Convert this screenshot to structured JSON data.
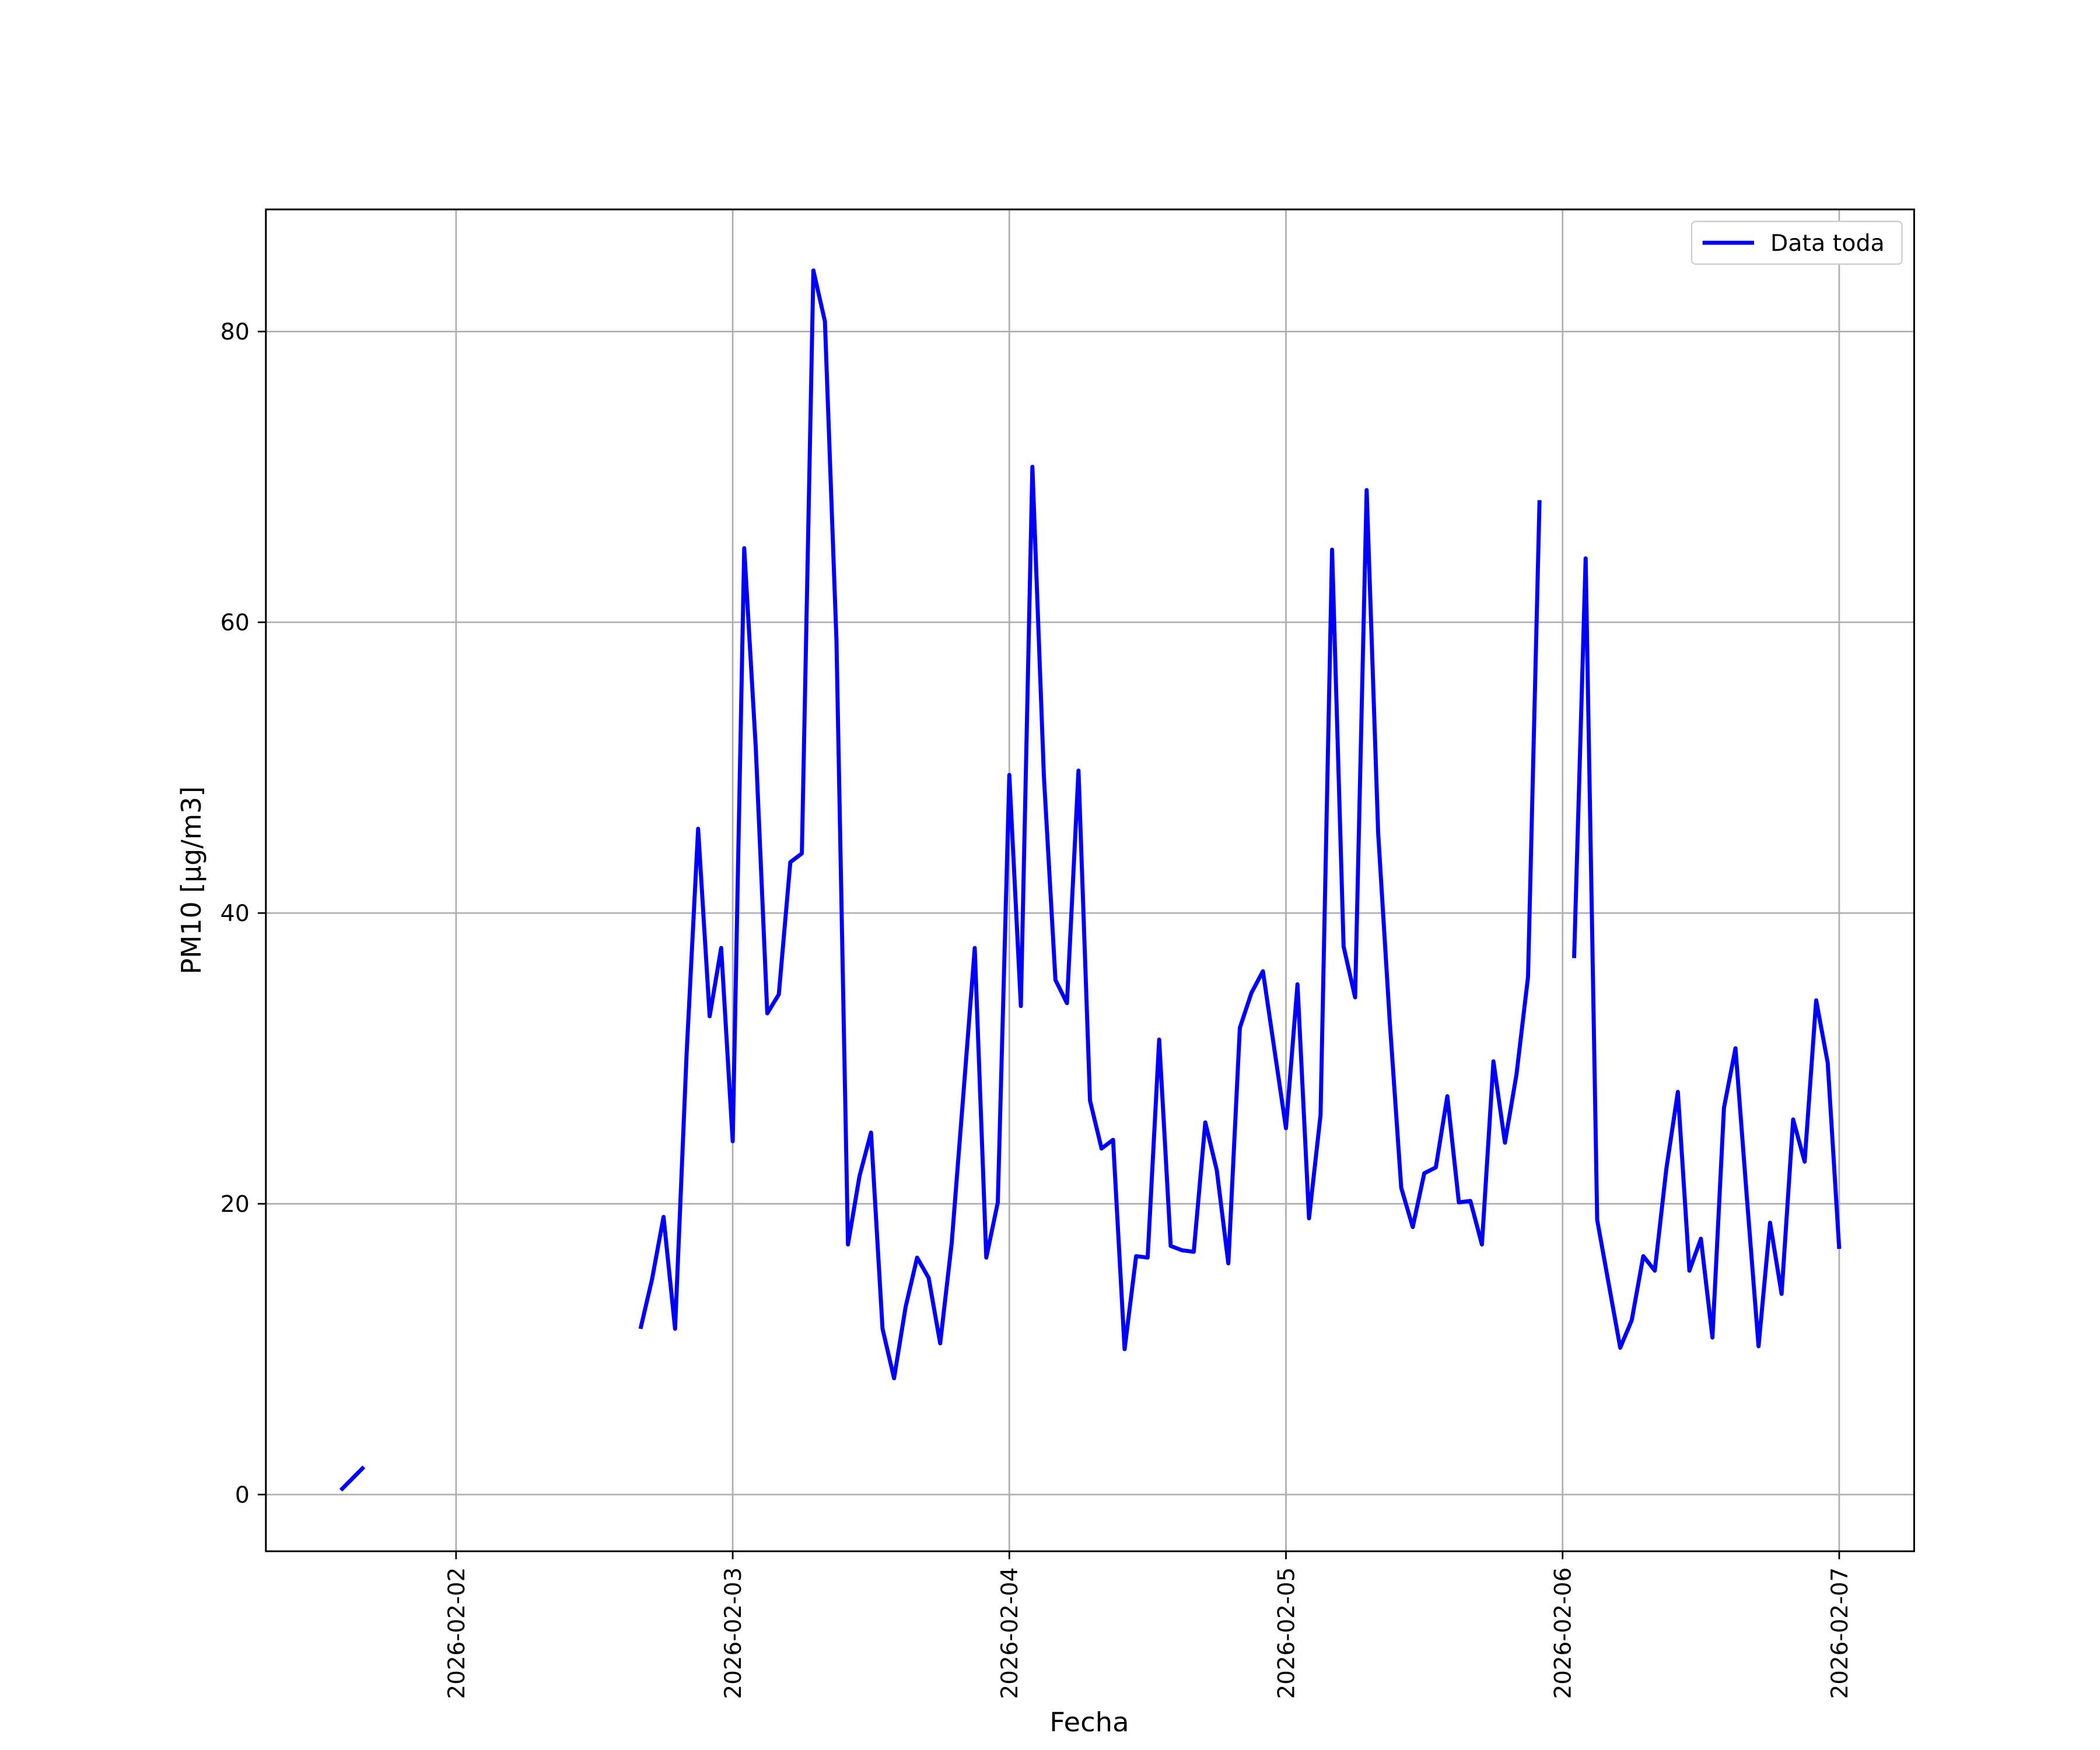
{
  "chart_data": {
    "type": "line",
    "xlabel": "Fecha",
    "ylabel": "PM10 [μg/m3]",
    "x": [
      "2026-02-01 14:00",
      "2026-02-01 15:00",
      "2026-02-01 16:00",
      "2026-02-01 17:00",
      "2026-02-02 16:00",
      "2026-02-02 17:00",
      "2026-02-02 18:00",
      "2026-02-02 19:00",
      "2026-02-02 20:00",
      "2026-02-02 21:00",
      "2026-02-02 22:00",
      "2026-02-02 23:00",
      "2026-02-03 00:00",
      "2026-02-03 01:00",
      "2026-02-03 02:00",
      "2026-02-03 03:00",
      "2026-02-03 04:00",
      "2026-02-03 05:00",
      "2026-02-03 06:00",
      "2026-02-03 07:00",
      "2026-02-03 08:00",
      "2026-02-03 09:00",
      "2026-02-03 10:00",
      "2026-02-03 11:00",
      "2026-02-03 12:00",
      "2026-02-03 13:00",
      "2026-02-03 14:00",
      "2026-02-03 15:00",
      "2026-02-03 16:00",
      "2026-02-03 17:00",
      "2026-02-03 18:00",
      "2026-02-03 19:00",
      "2026-02-03 20:00",
      "2026-02-03 21:00",
      "2026-02-03 22:00",
      "2026-02-03 23:00",
      "2026-02-04 00:00",
      "2026-02-04 01:00",
      "2026-02-04 02:00",
      "2026-02-04 03:00",
      "2026-02-04 04:00",
      "2026-02-04 05:00",
      "2026-02-04 06:00",
      "2026-02-04 07:00",
      "2026-02-04 08:00",
      "2026-02-04 09:00",
      "2026-02-04 10:00",
      "2026-02-04 11:00",
      "2026-02-04 12:00",
      "2026-02-04 13:00",
      "2026-02-04 14:00",
      "2026-02-04 15:00",
      "2026-02-04 16:00",
      "2026-02-04 17:00",
      "2026-02-04 18:00",
      "2026-02-04 19:00",
      "2026-02-04 20:00",
      "2026-02-04 21:00",
      "2026-02-04 22:00",
      "2026-02-04 23:00",
      "2026-02-05 00:00",
      "2026-02-05 01:00",
      "2026-02-05 02:00",
      "2026-02-05 03:00",
      "2026-02-05 04:00",
      "2026-02-05 05:00",
      "2026-02-05 06:00",
      "2026-02-05 07:00",
      "2026-02-05 08:00",
      "2026-02-05 09:00",
      "2026-02-05 10:00",
      "2026-02-05 11:00",
      "2026-02-05 12:00",
      "2026-02-05 13:00",
      "2026-02-05 14:00",
      "2026-02-05 15:00",
      "2026-02-05 16:00",
      "2026-02-05 17:00",
      "2026-02-05 18:00",
      "2026-02-05 19:00",
      "2026-02-05 20:00",
      "2026-02-05 21:00",
      "2026-02-05 22:00",
      "2026-02-05 23:00",
      "2026-02-06 00:00",
      "2026-02-06 01:00",
      "2026-02-06 02:00",
      "2026-02-06 03:00",
      "2026-02-06 04:00",
      "2026-02-06 05:00",
      "2026-02-06 06:00",
      "2026-02-06 07:00",
      "2026-02-06 08:00",
      "2026-02-06 09:00",
      "2026-02-06 10:00",
      "2026-02-06 11:00",
      "2026-02-06 12:00",
      "2026-02-06 13:00",
      "2026-02-06 14:00",
      "2026-02-06 15:00",
      "2026-02-06 16:00",
      "2026-02-06 17:00",
      "2026-02-06 18:00",
      "2026-02-06 19:00",
      "2026-02-06 20:00",
      "2026-02-06 21:00",
      "2026-02-06 22:00",
      "2026-02-06 23:00",
      "2026-02-07 00:00"
    ],
    "series": [
      {
        "name": "Data toda",
        "color": "#0000ff",
        "values": [
          0.3,
          1.1,
          1.9,
          null,
          11.4,
          14.8,
          19.1,
          11.4,
          30.3,
          45.8,
          32.9,
          37.6,
          24.3,
          65.1,
          51.4,
          33.1,
          34.4,
          43.5,
          44.1,
          84.2,
          80.7,
          58.8,
          17.2,
          21.9,
          24.9,
          11.4,
          8.0,
          12.9,
          16.3,
          14.9,
          10.4,
          17.3,
          27.4,
          37.6,
          16.3,
          20.1,
          49.5,
          33.6,
          70.7,
          49.4,
          35.4,
          33.8,
          49.8,
          27.1,
          23.8,
          24.4,
          10.0,
          16.4,
          16.3,
          31.3,
          17.1,
          16.8,
          16.7,
          25.6,
          22.3,
          15.9,
          32.1,
          34.5,
          36.0,
          30.6,
          25.2,
          35.1,
          19.0,
          26.1,
          65.0,
          37.7,
          34.2,
          69.1,
          45.5,
          32.6,
          21.1,
          18.4,
          22.1,
          22.5,
          27.4,
          20.1,
          20.2,
          17.2,
          29.8,
          24.2,
          28.9,
          35.6,
          68.4,
          null,
          null,
          36.9,
          64.4,
          18.9,
          14.5,
          10.1,
          12.0,
          16.4,
          15.4,
          22.4,
          27.7,
          15.4,
          17.6,
          10.8,
          26.6,
          30.7,
          20.3,
          10.2,
          18.7,
          13.8,
          25.8,
          22.9,
          34.0,
          29.7,
          16.9
        ]
      }
    ],
    "xlim": [
      "2026-02-01 07:30",
      "2026-02-07 06:30"
    ],
    "xticks": [
      {
        "value": "2026-02-02 00:00",
        "label": "2026-02-02"
      },
      {
        "value": "2026-02-03 00:00",
        "label": "2026-02-03"
      },
      {
        "value": "2026-02-04 00:00",
        "label": "2026-02-04"
      },
      {
        "value": "2026-02-05 00:00",
        "label": "2026-02-05"
      },
      {
        "value": "2026-02-06 00:00",
        "label": "2026-02-06"
      },
      {
        "value": "2026-02-07 00:00",
        "label": "2026-02-07"
      }
    ],
    "ylim": [
      -3.9,
      88.4
    ],
    "yticks": [
      0,
      20,
      40,
      60,
      80
    ],
    "grid": true,
    "legend": "upper right"
  }
}
